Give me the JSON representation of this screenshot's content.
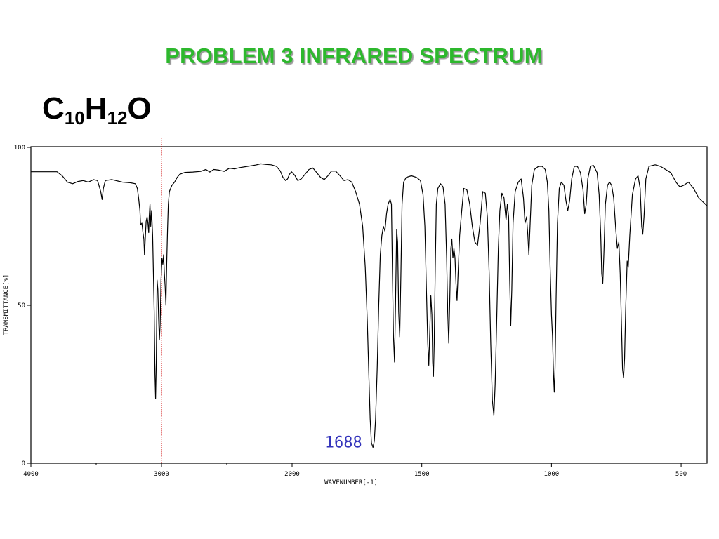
{
  "slide": {
    "title": "PROBLEM  3   INFRARED SPECTRUM",
    "formula": {
      "e1": "C",
      "n1": "10",
      "e2": "H",
      "n2": "12",
      "e3": "O"
    },
    "colors": {
      "title": "#2db82d",
      "spectrum": "#000000",
      "marker": "#cc0000",
      "annotation": "#3333bb"
    }
  },
  "chart_data": {
    "type": "line",
    "xlabel": "WAVENUMBER[-1]",
    "ylabel": "TRANSMITTANCE[%]",
    "xlim": [
      4000,
      400
    ],
    "ylim": [
      0,
      100
    ],
    "x_ticks": [
      {
        "value": 4000,
        "label": "4000"
      },
      {
        "value": 3000,
        "label": "3000"
      },
      {
        "value": 2000,
        "label": "2000"
      },
      {
        "value": 1500,
        "label": "1500"
      },
      {
        "value": 1000,
        "label": "1000"
      },
      {
        "value": 500,
        "label": "500"
      }
    ],
    "y_ticks": [
      {
        "value": 0,
        "label": "0"
      },
      {
        "value": 50,
        "label": "50"
      },
      {
        "value": 100,
        "label": "100"
      }
    ],
    "reference_line": {
      "x": 3000,
      "style": "dotted"
    },
    "annotation": {
      "x": 1688,
      "y": 5,
      "label": "1688"
    },
    "series": [
      {
        "points": [
          [
            4000,
            92.3
          ],
          [
            3800,
            92.3
          ],
          [
            3760,
            91
          ],
          [
            3720,
            89
          ],
          [
            3680,
            88.5
          ],
          [
            3640,
            89.2
          ],
          [
            3600,
            89.5
          ],
          [
            3560,
            89
          ],
          [
            3520,
            89.8
          ],
          [
            3490,
            89.5
          ],
          [
            3465,
            86
          ],
          [
            3455,
            83.5
          ],
          [
            3445,
            87
          ],
          [
            3430,
            89.5
          ],
          [
            3380,
            89.8
          ],
          [
            3300,
            89
          ],
          [
            3240,
            88.8
          ],
          [
            3200,
            88.5
          ],
          [
            3185,
            87
          ],
          [
            3175,
            84
          ],
          [
            3165,
            80
          ],
          [
            3160,
            75.5
          ],
          [
            3150,
            76
          ],
          [
            3142,
            73
          ],
          [
            3135,
            71
          ],
          [
            3130,
            66
          ],
          [
            3124,
            71
          ],
          [
            3118,
            76.5
          ],
          [
            3110,
            78
          ],
          [
            3104,
            76
          ],
          [
            3098,
            73
          ],
          [
            3094,
            78
          ],
          [
            3088,
            82
          ],
          [
            3082,
            75
          ],
          [
            3076,
            80
          ],
          [
            3068,
            72
          ],
          [
            3062,
            60
          ],
          [
            3056,
            48
          ],
          [
            3050,
            28
          ],
          [
            3045,
            20.5
          ],
          [
            3040,
            32
          ],
          [
            3034,
            58
          ],
          [
            3028,
            55
          ],
          [
            3022,
            46
          ],
          [
            3016,
            39
          ],
          [
            3010,
            44
          ],
          [
            3004,
            58
          ],
          [
            2996,
            65
          ],
          [
            2990,
            63
          ],
          [
            2984,
            66
          ],
          [
            2978,
            60
          ],
          [
            2972,
            56
          ],
          [
            2966,
            50
          ],
          [
            2960,
            63
          ],
          [
            2954,
            74
          ],
          [
            2948,
            82
          ],
          [
            2940,
            86
          ],
          [
            2930,
            87
          ],
          [
            2920,
            88
          ],
          [
            2900,
            89
          ],
          [
            2880,
            90.5
          ],
          [
            2860,
            91.5
          ],
          [
            2820,
            92.1
          ],
          [
            2760,
            92.2
          ],
          [
            2700,
            92.4
          ],
          [
            2660,
            93
          ],
          [
            2630,
            92.2
          ],
          [
            2600,
            93
          ],
          [
            2560,
            92.8
          ],
          [
            2520,
            92.4
          ],
          [
            2480,
            93.4
          ],
          [
            2440,
            93.2
          ],
          [
            2400,
            93.6
          ],
          [
            2340,
            94
          ],
          [
            2280,
            94.4
          ],
          [
            2240,
            94.8
          ],
          [
            2200,
            94.6
          ],
          [
            2160,
            94.5
          ],
          [
            2120,
            94
          ],
          [
            2090,
            92.5
          ],
          [
            2070,
            90.5
          ],
          [
            2050,
            89.5
          ],
          [
            2035,
            90
          ],
          [
            2020,
            91.5
          ],
          [
            2005,
            92.3
          ],
          [
            1990,
            91.2
          ],
          [
            1978,
            89.5
          ],
          [
            1965,
            90
          ],
          [
            1950,
            91.5
          ],
          [
            1935,
            93
          ],
          [
            1920,
            93.5
          ],
          [
            1905,
            92
          ],
          [
            1890,
            90.5
          ],
          [
            1876,
            89.8
          ],
          [
            1862,
            91
          ],
          [
            1848,
            92.5
          ],
          [
            1832,
            92.5
          ],
          [
            1815,
            91
          ],
          [
            1800,
            89.5
          ],
          [
            1785,
            89.8
          ],
          [
            1770,
            89
          ],
          [
            1755,
            86
          ],
          [
            1740,
            82
          ],
          [
            1728,
            75
          ],
          [
            1718,
            62
          ],
          [
            1710,
            45
          ],
          [
            1704,
            28
          ],
          [
            1699,
            14
          ],
          [
            1694,
            6.5
          ],
          [
            1688,
            5
          ],
          [
            1683,
            7
          ],
          [
            1678,
            14
          ],
          [
            1672,
            30
          ],
          [
            1666,
            50
          ],
          [
            1660,
            66
          ],
          [
            1654,
            72
          ],
          [
            1648,
            75
          ],
          [
            1642,
            73.5
          ],
          [
            1636,
            79
          ],
          [
            1630,
            82
          ],
          [
            1622,
            83.5
          ],
          [
            1617,
            82
          ],
          [
            1613,
            60
          ],
          [
            1609,
            40
          ],
          [
            1605,
            32
          ],
          [
            1601,
            52
          ],
          [
            1597,
            74
          ],
          [
            1593,
            70
          ],
          [
            1589,
            48
          ],
          [
            1585,
            40
          ],
          [
            1581,
            58
          ],
          [
            1576,
            82
          ],
          [
            1570,
            89
          ],
          [
            1560,
            90.5
          ],
          [
            1540,
            91
          ],
          [
            1520,
            90.5
          ],
          [
            1505,
            89.5
          ],
          [
            1495,
            85
          ],
          [
            1488,
            75
          ],
          [
            1482,
            55
          ],
          [
            1477,
            38
          ],
          [
            1473,
            31
          ],
          [
            1469,
            42
          ],
          [
            1465,
            53
          ],
          [
            1461,
            47
          ],
          [
            1458,
            32
          ],
          [
            1455,
            27.5
          ],
          [
            1452,
            38
          ],
          [
            1448,
            62
          ],
          [
            1444,
            82
          ],
          [
            1438,
            87
          ],
          [
            1428,
            88.5
          ],
          [
            1418,
            87.5
          ],
          [
            1410,
            82
          ],
          [
            1404,
            65
          ],
          [
            1400,
            48
          ],
          [
            1396,
            38
          ],
          [
            1392,
            52
          ],
          [
            1388,
            68
          ],
          [
            1384,
            71
          ],
          [
            1380,
            65
          ],
          [
            1376,
            68
          ],
          [
            1372,
            65
          ],
          [
            1368,
            57
          ],
          [
            1364,
            51.5
          ],
          [
            1360,
            60
          ],
          [
            1354,
            72
          ],
          [
            1346,
            80
          ],
          [
            1338,
            87
          ],
          [
            1326,
            86.5
          ],
          [
            1315,
            82
          ],
          [
            1305,
            75
          ],
          [
            1295,
            70
          ],
          [
            1285,
            69
          ],
          [
            1275,
            76
          ],
          [
            1265,
            86
          ],
          [
            1255,
            85.5
          ],
          [
            1247,
            78
          ],
          [
            1240,
            60
          ],
          [
            1234,
            38
          ],
          [
            1228,
            20
          ],
          [
            1222,
            15
          ],
          [
            1217,
            25
          ],
          [
            1211,
            45
          ],
          [
            1205,
            68
          ],
          [
            1199,
            80
          ],
          [
            1191,
            85.5
          ],
          [
            1183,
            84
          ],
          [
            1175,
            77
          ],
          [
            1170,
            82
          ],
          [
            1165,
            78
          ],
          [
            1161,
            58
          ],
          [
            1157,
            43.5
          ],
          [
            1153,
            55
          ],
          [
            1148,
            76
          ],
          [
            1140,
            86
          ],
          [
            1128,
            89
          ],
          [
            1117,
            90
          ],
          [
            1108,
            84
          ],
          [
            1102,
            76
          ],
          [
            1096,
            78
          ],
          [
            1091,
            72
          ],
          [
            1087,
            66
          ],
          [
            1083,
            74
          ],
          [
            1076,
            88
          ],
          [
            1066,
            93
          ],
          [
            1050,
            94
          ],
          [
            1036,
            94
          ],
          [
            1024,
            93
          ],
          [
            1016,
            89
          ],
          [
            1010,
            80
          ],
          [
            1005,
            62
          ],
          [
            1000,
            47
          ],
          [
            996,
            40
          ],
          [
            992,
            28
          ],
          [
            989,
            22.5
          ],
          [
            986,
            30
          ],
          [
            982,
            52
          ],
          [
            977,
            76
          ],
          [
            970,
            87
          ],
          [
            962,
            89
          ],
          [
            952,
            88
          ],
          [
            944,
            83
          ],
          [
            937,
            80
          ],
          [
            930,
            83
          ],
          [
            922,
            90
          ],
          [
            912,
            94
          ],
          [
            900,
            94
          ],
          [
            888,
            92
          ],
          [
            878,
            86.5
          ],
          [
            872,
            79
          ],
          [
            866,
            82
          ],
          [
            860,
            90
          ],
          [
            850,
            94
          ],
          [
            838,
            94.3
          ],
          [
            824,
            92
          ],
          [
            816,
            85
          ],
          [
            810,
            72
          ],
          [
            806,
            60
          ],
          [
            802,
            57
          ],
          [
            798,
            66
          ],
          [
            792,
            82
          ],
          [
            784,
            88
          ],
          [
            776,
            89
          ],
          [
            768,
            88
          ],
          [
            760,
            84
          ],
          [
            752,
            74
          ],
          [
            746,
            68
          ],
          [
            740,
            70
          ],
          [
            735,
            60
          ],
          [
            730,
            44
          ],
          [
            726,
            30
          ],
          [
            722,
            27
          ],
          [
            718,
            33
          ],
          [
            714,
            48
          ],
          [
            708,
            64
          ],
          [
            704,
            62
          ],
          [
            698,
            72
          ],
          [
            688,
            85
          ],
          [
            676,
            90
          ],
          [
            666,
            91
          ],
          [
            658,
            87
          ],
          [
            652,
            75
          ],
          [
            648,
            72.5
          ],
          [
            643,
            78
          ],
          [
            636,
            90
          ],
          [
            624,
            94
          ],
          [
            600,
            94.5
          ],
          [
            580,
            94
          ],
          [
            560,
            93
          ],
          [
            540,
            92
          ],
          [
            520,
            89
          ],
          [
            505,
            87.5
          ],
          [
            490,
            88
          ],
          [
            472,
            89
          ],
          [
            452,
            87
          ],
          [
            432,
            84
          ],
          [
            400,
            81.5
          ]
        ]
      }
    ]
  }
}
